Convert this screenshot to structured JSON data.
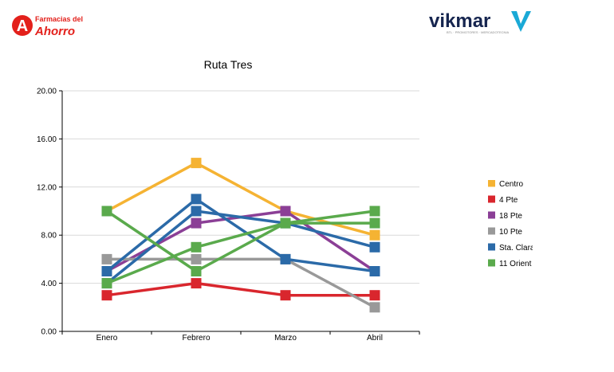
{
  "logos": {
    "left": {
      "line1": "Farmacias del",
      "line2": "Ahorro",
      "mark": "A",
      "color": "#e3201b"
    },
    "right": {
      "text": "vikmar",
      "tagline": "BTL · PROMOTORES · MERCADOTECNIA",
      "color": "#16254f",
      "accent": "#1aa9d6"
    }
  },
  "chart_data": {
    "type": "line",
    "title": "Ruta Tres",
    "categories": [
      "Enero",
      "Febrero",
      "Marzo",
      "Abril"
    ],
    "ylim": [
      0,
      20
    ],
    "yticks": [
      "0.00",
      "4.00",
      "8.00",
      "12.00",
      "16.00",
      "20.00"
    ],
    "grid": true,
    "legend_position": "right",
    "series": [
      {
        "name": "Centro",
        "color": "#f5b333",
        "values": [
          10,
          14,
          10,
          8
        ]
      },
      {
        "name": "4 Pte",
        "color": "#d9262d",
        "values": [
          3,
          4,
          3,
          3
        ]
      },
      {
        "name": "18 Pte",
        "color": "#8b3f96",
        "values": [
          5,
          9,
          10,
          5
        ]
      },
      {
        "name": "10 Pte",
        "color": "#999999",
        "values": [
          6,
          6,
          6,
          2
        ]
      },
      {
        "name": "Sta. Clara",
        "color": "#2b6aa8",
        "values": [
          5,
          11,
          6,
          5
        ]
      },
      {
        "name": "Sta. Clara",
        "color": "#2b6aa8",
        "values": [
          4,
          10,
          9,
          7
        ]
      },
      {
        "name": "11 Orient",
        "color": "#5aaa4c",
        "values": [
          10,
          5,
          9,
          9
        ]
      },
      {
        "name": "11 Orient",
        "color": "#5aaa4c",
        "values": [
          4,
          7,
          9,
          10
        ]
      }
    ],
    "legend": [
      {
        "name": "Centro",
        "color": "#f5b333"
      },
      {
        "name": "4 Pte",
        "color": "#d9262d"
      },
      {
        "name": "18 Pte",
        "color": "#8b3f96"
      },
      {
        "name": "10 Pte",
        "color": "#999999"
      },
      {
        "name": "Sta. Clara",
        "color": "#2b6aa8"
      },
      {
        "name": "11 Orient",
        "color": "#5aaa4c"
      }
    ]
  }
}
